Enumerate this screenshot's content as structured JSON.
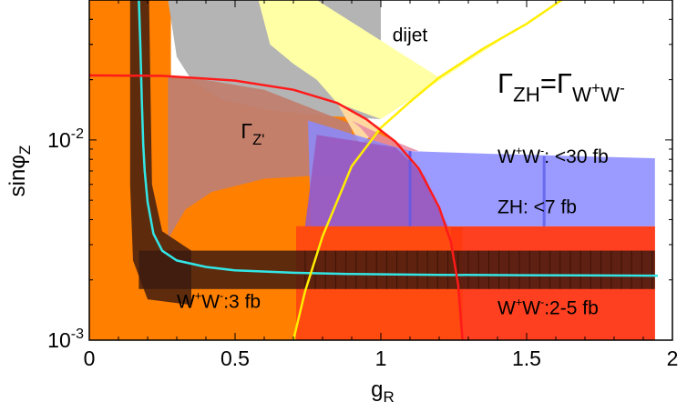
{
  "chart_data": {
    "type": "area",
    "xlabel": "g",
    "xlabel_sub": "R",
    "ylabel": "sinφ",
    "ylabel_sub": "Z",
    "log_y": true,
    "xlim": [
      0,
      2
    ],
    "ylim": [
      0.001,
      0.05
    ],
    "x_ticks": [
      {
        "value": 0,
        "label": "0"
      },
      {
        "value": 0.5,
        "label": "0.5"
      },
      {
        "value": 1,
        "label": "1"
      },
      {
        "value": 1.5,
        "label": "1.5"
      },
      {
        "value": 2,
        "label": "2"
      }
    ],
    "y_ticks": [
      {
        "value": 0.01,
        "base": "10",
        "exp": "-2"
      },
      {
        "value": 0.001,
        "base": "10",
        "exp": "-3"
      }
    ],
    "colors": {
      "orange": "#ff7f00",
      "gray": "#b4b4b4",
      "yellow_fill": "#ffffa6",
      "yellow_line": "#ffee00",
      "blue": "#8a8aff",
      "red_fill": "#ff3a10",
      "red_line": "#ff1a1a",
      "cyan": "#33e6e6",
      "dark_band": "#3a1a10",
      "pink": "#e88aa5"
    },
    "regions": [
      {
        "name": "Z' width (orange)",
        "color": "orange",
        "boundary": [
          [
            0,
            0.021
          ],
          [
            0.25,
            0.0209
          ],
          [
            0.5,
            0.0198
          ],
          [
            0.7,
            0.0178
          ],
          [
            0.85,
            0.0153
          ],
          [
            0.95,
            0.0127
          ],
          [
            1.05,
            0.0098
          ],
          [
            1.13,
            0.0072
          ],
          [
            1.2,
            0.0046
          ],
          [
            1.24,
            0.0031
          ],
          [
            1.265,
            0.0019
          ],
          [
            1.28,
            0.001
          ]
        ]
      },
      {
        "name": "gray",
        "color": "gray",
        "boundary_inner_x": [
          [
            0.27,
            0.05
          ],
          [
            0.27,
            0.003
          ]
        ],
        "boundary": [
          [
            0.27,
            0.05
          ],
          [
            0.3,
            0.026
          ],
          [
            0.35,
            0.02
          ],
          [
            0.45,
            0.016
          ],
          [
            0.6,
            0.0142
          ],
          [
            0.8,
            0.0132
          ],
          [
            1.0,
            0.0127
          ]
        ]
      },
      {
        "name": "dijet",
        "color": "yellow_fill",
        "curve": [
          [
            0.7,
            0.001
          ],
          [
            0.74,
            0.00175
          ],
          [
            0.8,
            0.0033
          ],
          [
            0.9,
            0.0074
          ],
          [
            1.0,
            0.0115
          ],
          [
            1.1,
            0.0155
          ],
          [
            1.2,
            0.0205
          ],
          [
            1.35,
            0.0285
          ],
          [
            1.5,
            0.038
          ],
          [
            1.62,
            0.05
          ]
        ]
      },
      {
        "name": "W+W-: <30 fb",
        "color": "blue",
        "boundary": [
          [
            0.75,
            0.0125
          ],
          [
            1.05,
            0.0092
          ],
          [
            1.1,
            0.0088
          ],
          [
            1.2,
            0.0087
          ],
          [
            1.4,
            0.0085
          ],
          [
            1.94,
            0.0081
          ]
        ],
        "bottom": 0.0037
      },
      {
        "name": "W+W-:2-5 fb",
        "color": "red_fill",
        "x_range": [
          0.71,
          1.94
        ],
        "y_range": [
          0.001,
          0.0037
        ]
      },
      {
        "name": "W+W-:3 fb band",
        "color": "dark_band",
        "y_band": [
          0.0018,
          0.0028
        ]
      }
    ],
    "series": [
      {
        "type": "line",
        "color": "cyan",
        "x": [
          0.17,
          0.175,
          0.18,
          0.185,
          0.19,
          0.2,
          0.22,
          0.25,
          0.3,
          0.4,
          0.5,
          0.7,
          0.9,
          1.2,
          1.5,
          1.95
        ],
        "y": [
          0.05,
          0.03,
          0.016,
          0.0095,
          0.007,
          0.0049,
          0.0034,
          0.0028,
          0.0025,
          0.00232,
          0.00223,
          0.00217,
          0.00214,
          0.00212,
          0.00211,
          0.0021
        ]
      },
      {
        "type": "line",
        "color": "yellow_line",
        "x": [
          0.7,
          0.74,
          0.8,
          0.9,
          1.0,
          1.1,
          1.2,
          1.35,
          1.5,
          1.62
        ],
        "y": [
          0.001,
          0.00175,
          0.0033,
          0.0074,
          0.0115,
          0.0155,
          0.0205,
          0.0285,
          0.038,
          0.05
        ]
      },
      {
        "type": "line",
        "color": "red_line",
        "x": [
          0,
          0.25,
          0.5,
          0.7,
          0.85,
          0.95,
          1.05,
          1.13,
          1.2,
          1.24,
          1.265,
          1.28
        ],
        "y": [
          0.021,
          0.0209,
          0.0198,
          0.0178,
          0.0153,
          0.0127,
          0.0098,
          0.0072,
          0.0046,
          0.0031,
          0.0019,
          0.001
        ]
      }
    ],
    "annotations": [
      {
        "id": "dijet",
        "text": "dijet",
        "x": 1.1,
        "y": 0.031,
        "size": 21
      },
      {
        "id": "gammazp",
        "parts": [
          {
            "t": "Γ"
          },
          {
            "t": "Z'",
            "sub": true
          }
        ],
        "x": 0.52,
        "y": 0.0102,
        "size": 23
      },
      {
        "id": "gammaeq",
        "parts": [
          {
            "t": "Γ"
          },
          {
            "t": "ZH",
            "sub": true
          },
          {
            "t": "=Γ"
          },
          {
            "t": "W",
            "sub": true
          },
          {
            "t": "+",
            "supsub": true
          },
          {
            "t": "W",
            "sub": true
          },
          {
            "t": "-",
            "supsub": true
          }
        ],
        "x": 1.4,
        "y": 0.0172,
        "size": 31
      },
      {
        "id": "ww30",
        "parts": [
          {
            "t": "W"
          },
          {
            "t": "+",
            "sup": true
          },
          {
            "t": "W"
          },
          {
            "t": "-",
            "sup": true
          },
          {
            "t": ": <30 fb"
          }
        ],
        "x": 1.4,
        "y": 0.0077,
        "size": 21
      },
      {
        "id": "zh7",
        "parts": [
          {
            "t": "ZH: <7 fb"
          }
        ],
        "x": 1.4,
        "y": 0.0043,
        "size": 21
      },
      {
        "id": "ww3",
        "parts": [
          {
            "t": "W"
          },
          {
            "t": "+",
            "sup": true
          },
          {
            "t": "W"
          },
          {
            "t": "-",
            "sup": true
          },
          {
            "t": ":3 fb"
          }
        ],
        "x": 0.3,
        "y": 0.00145,
        "size": 21
      },
      {
        "id": "ww25",
        "parts": [
          {
            "t": "W"
          },
          {
            "t": "+",
            "sup": true
          },
          {
            "t": "W"
          },
          {
            "t": "-",
            "sup": true
          },
          {
            "t": ":2-5 fb"
          }
        ],
        "x": 1.4,
        "y": 0.00135,
        "size": 21
      }
    ]
  }
}
